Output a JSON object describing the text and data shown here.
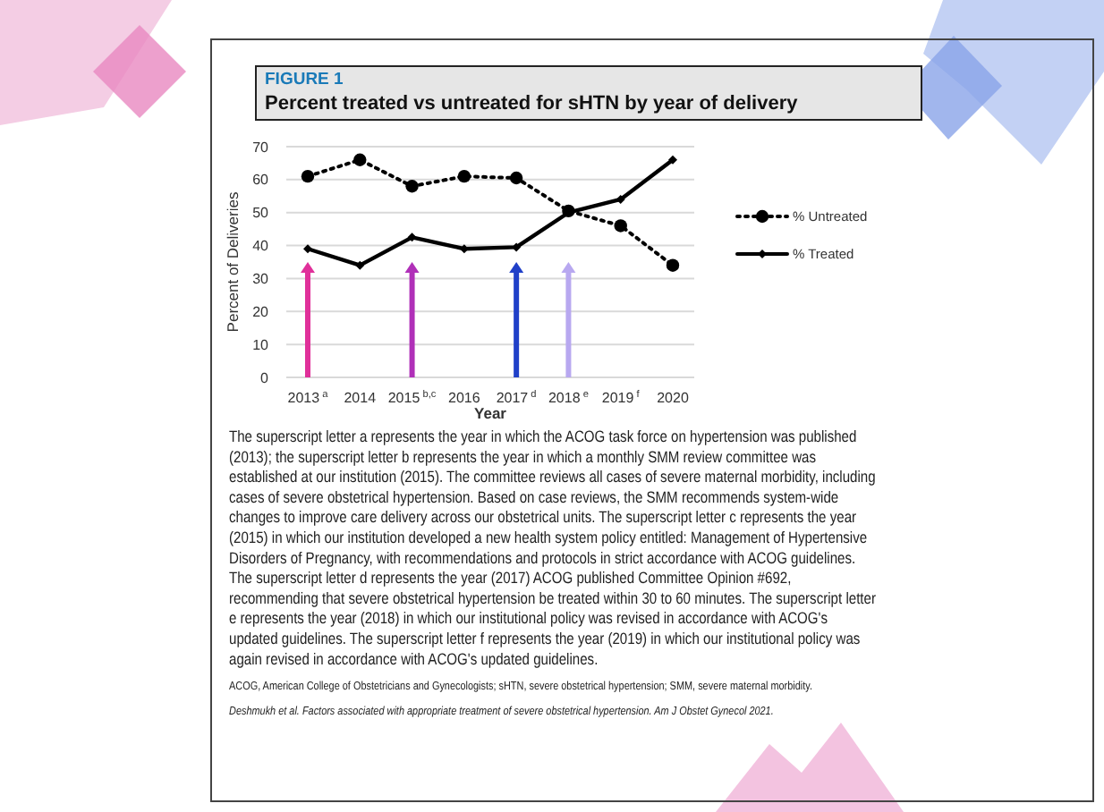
{
  "chart_data": {
    "type": "line",
    "title": "Percent treated vs untreated for sHTN by year of delivery",
    "xlabel": "Year",
    "ylabel": "Percent of Deliveries",
    "categories": [
      "2013$^{a}$",
      "2014",
      "2015$^{b,c}$",
      "2016",
      "2017$^{d}$",
      "2018$^{e}$",
      "2019$^{f}$",
      "2020"
    ],
    "series": [
      {
        "name": "% Untreated",
        "color": "#000000",
        "values": [
          61,
          66,
          58,
          61,
          60.5,
          50.5,
          46,
          34
        ],
        "marker": "circle",
        "line_style": "dotted"
      },
      {
        "name": "% Treated",
        "color": "#000000",
        "values": [
          39,
          34,
          42.5,
          39,
          39.5,
          50,
          54,
          66
        ],
        "marker": "diamond",
        "line_style": "solid"
      }
    ],
    "ylim": [
      0,
      70
    ],
    "yticks": [
      0,
      10,
      20,
      30,
      40,
      50,
      60,
      70
    ],
    "grid": "y",
    "legend": "right",
    "ref_lines": [
      {
        "axis": "x",
        "value": "2013$^{a}$",
        "color": "#e0309a"
      },
      {
        "axis": "x",
        "value": "2015$^{b,c}$",
        "color": "#b030b8"
      },
      {
        "axis": "x",
        "value": "2017$^{d}$",
        "color": "#2040c8"
      },
      {
        "axis": "x",
        "value": "2018$^{e}$",
        "color": "#b8a8f0"
      }
    ],
    "annotations": [
      "FIGURE 1",
      "The superscript letter a represents the year in which the ACOG task force on hypertension was published (2013); the superscript letter b represents the year in which a monthly SMM review committee was established at our institution (2015). The committee reviews all cases of severe maternal morbidity, including cases of severe obstetrical hypertension. Based on case reviews, the SMM recommends system-wide changes to improve care delivery across our obstetrical units. The superscript letter c represents the year (2015) in which our institution developed a new health system policy entitled: Management of Hypertensive Disorders of Pregnancy, with recommendations and protocols in strict accordance with ACOG guidelines. The superscript letter d represents the year (2017) ACOG published Committee Opinion #692, recommending that severe obstetrical hypertension be treated within 30 to 60 minutes. The superscript letter e represents the year (2018) in which our institutional policy was revised in accordance with ACOG's updated guidelines. The superscript letter f represents the year (2019) in which our institutional policy was again revised in accordance with ACOG's updated guidelines.",
      "ACOG, American College of Obstetricians and Gynecologists; sHTN, severe obstetrical hypertension; SMM, severe maternal morbidity.",
      "Deshmukh et al. Factors associated with appropriate treatment of severe obstetrical hypertension. Am J Obstet Gynecol 2021."
    ]
  }
}
